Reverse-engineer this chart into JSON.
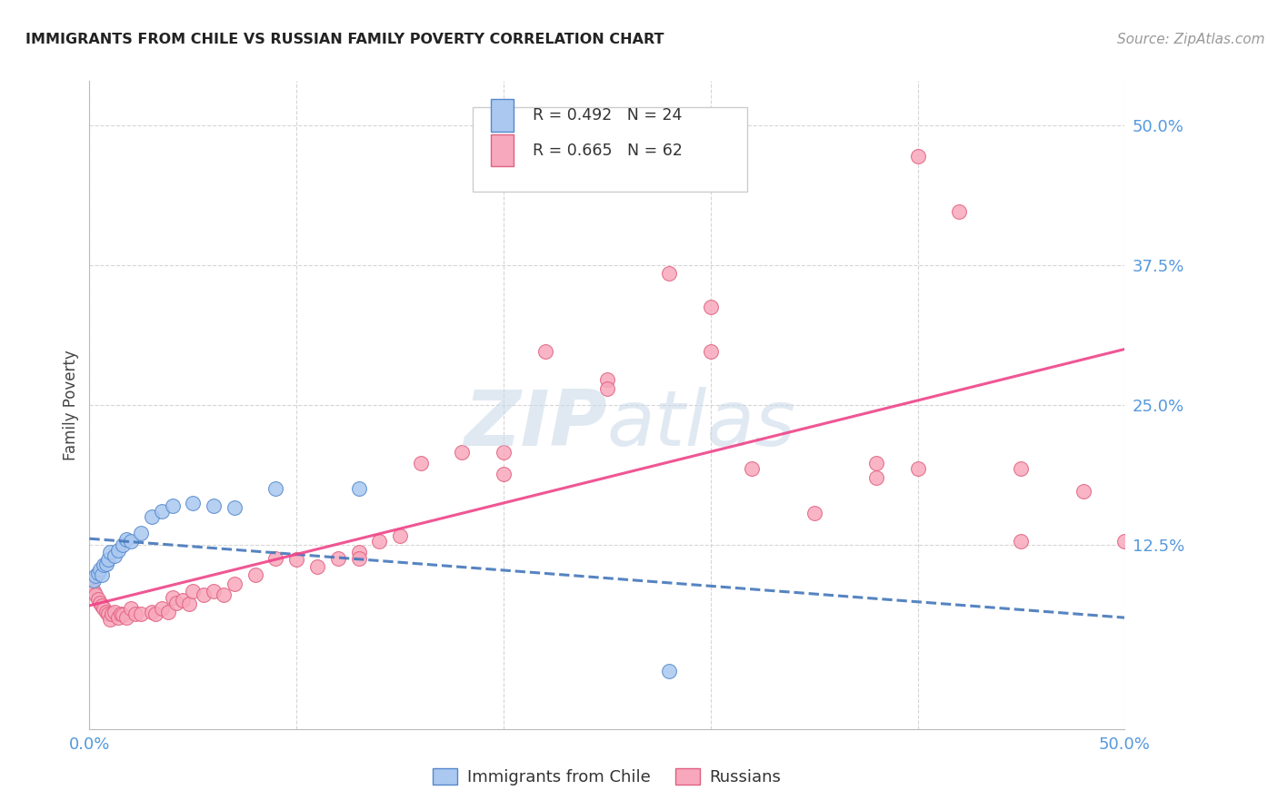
{
  "title": "IMMIGRANTS FROM CHILE VS RUSSIAN FAMILY POVERTY CORRELATION CHART",
  "source": "Source: ZipAtlas.com",
  "ylabel": "Family Poverty",
  "ytick_labels": [
    "12.5%",
    "25.0%",
    "37.5%",
    "50.0%"
  ],
  "ytick_vals": [
    0.125,
    0.25,
    0.375,
    0.5
  ],
  "xlim": [
    0.0,
    0.5
  ],
  "ylim": [
    -0.04,
    0.54
  ],
  "legend1_r": "0.492",
  "legend1_n": "24",
  "legend2_r": "0.665",
  "legend2_n": "62",
  "chile_color": "#aac8f0",
  "chile_edge_color": "#5588cc",
  "chile_line_color": "#4477bb",
  "russia_color": "#f8a8bc",
  "russia_edge_color": "#e06080",
  "russia_line_color": "#ee4488",
  "background_color": "#ffffff",
  "watermark": "ZIPatlas",
  "chile_x": [
    0.002,
    0.003,
    0.004,
    0.005,
    0.006,
    0.007,
    0.008,
    0.009,
    0.01,
    0.012,
    0.014,
    0.016,
    0.018,
    0.02,
    0.025,
    0.03,
    0.035,
    0.04,
    0.05,
    0.06,
    0.07,
    0.09,
    0.13,
    0.28
  ],
  "chile_y": [
    0.093,
    0.097,
    0.1,
    0.103,
    0.098,
    0.107,
    0.108,
    0.112,
    0.118,
    0.115,
    0.12,
    0.125,
    0.13,
    0.128,
    0.135,
    0.15,
    0.155,
    0.16,
    0.162,
    0.16,
    0.158,
    0.175,
    0.175,
    0.012
  ],
  "russia_x": [
    0.001,
    0.002,
    0.003,
    0.004,
    0.005,
    0.006,
    0.007,
    0.008,
    0.009,
    0.01,
    0.011,
    0.012,
    0.014,
    0.015,
    0.016,
    0.018,
    0.02,
    0.022,
    0.025,
    0.03,
    0.032,
    0.035,
    0.038,
    0.04,
    0.042,
    0.045,
    0.048,
    0.05,
    0.055,
    0.06,
    0.065,
    0.07,
    0.08,
    0.09,
    0.1,
    0.11,
    0.12,
    0.13,
    0.14,
    0.15,
    0.16,
    0.18,
    0.2,
    0.22,
    0.25,
    0.28,
    0.3,
    0.32,
    0.35,
    0.38,
    0.4,
    0.42,
    0.45,
    0.48,
    0.5,
    0.3,
    0.38,
    0.4,
    0.45,
    0.13,
    0.2,
    0.25
  ],
  "russia_y": [
    0.087,
    0.083,
    0.08,
    0.076,
    0.073,
    0.07,
    0.068,
    0.065,
    0.063,
    0.058,
    0.063,
    0.065,
    0.06,
    0.063,
    0.062,
    0.06,
    0.068,
    0.063,
    0.063,
    0.065,
    0.063,
    0.068,
    0.065,
    0.078,
    0.073,
    0.075,
    0.072,
    0.083,
    0.08,
    0.083,
    0.08,
    0.09,
    0.098,
    0.113,
    0.112,
    0.105,
    0.113,
    0.118,
    0.128,
    0.133,
    0.198,
    0.208,
    0.188,
    0.298,
    0.273,
    0.368,
    0.338,
    0.193,
    0.153,
    0.198,
    0.473,
    0.423,
    0.193,
    0.173,
    0.128,
    0.298,
    0.185,
    0.193,
    0.128,
    0.113,
    0.208,
    0.265
  ]
}
